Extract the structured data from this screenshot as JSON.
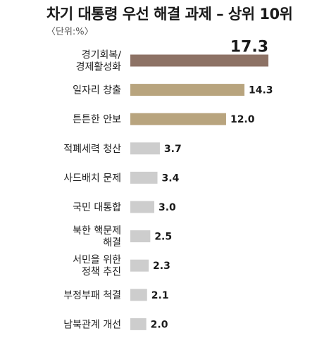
{
  "title": "차기 대통령 우선 해결 과제 – 상위 10위",
  "unit_label": "〈단위:%〉",
  "colors": {
    "top": "#8d7265",
    "high": "#b8a47e",
    "rest": "#cdcdcd",
    "label": "#1e1e1e"
  },
  "chart_data": {
    "type": "bar",
    "orientation": "horizontal",
    "title": "차기 대통령 우선 해결 과제 – 상위 10위",
    "unit": "%",
    "categories": [
      "경기회복/\n경제활성화",
      "일자리 창출",
      "튼튼한 안보",
      "적폐세력 청산",
      "사드배치 문제",
      "국민 대통합",
      "북한 핵문제\n해결",
      "서민을 위한\n정책 추진",
      "부정부패 척결",
      "남북관계 개선"
    ],
    "values": [
      17.3,
      14.3,
      12.0,
      3.7,
      3.4,
      3.0,
      2.5,
      2.3,
      2.1,
      2.0
    ],
    "value_labels": [
      "17.3",
      "14.3",
      "12.0",
      "3.7",
      "3.4",
      "3.0",
      "2.5",
      "2.3",
      "2.1",
      "2.0"
    ],
    "bar_color_groups": [
      "top",
      "high",
      "high",
      "rest",
      "rest",
      "rest",
      "rest",
      "rest",
      "rest",
      "rest"
    ],
    "xlim": [
      0,
      17.3
    ],
    "grid": false,
    "legend": "none"
  }
}
